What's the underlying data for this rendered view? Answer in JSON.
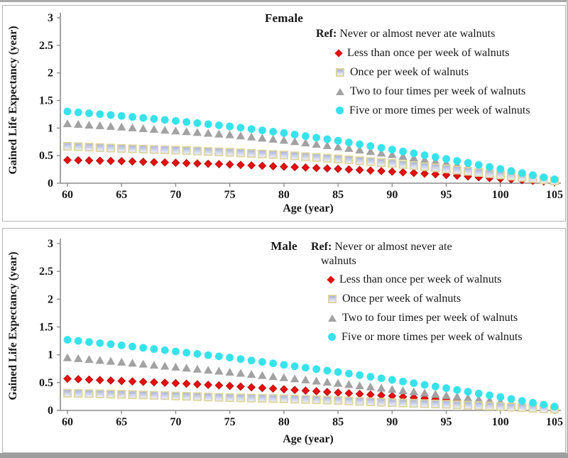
{
  "figure": {
    "background": "#ffffff",
    "panel_border_color": "#b3b3b3",
    "axis_color": "#8c8c8c",
    "text_color": "#161616"
  },
  "chart_data": [
    {
      "id": "female",
      "type": "scatter",
      "title": "Female",
      "xlabel": "Age (year)",
      "ylabel": "Gained Life Expectancy (year)",
      "xlim": [
        60,
        105
      ],
      "ylim": [
        0,
        3
      ],
      "x_ticks": [
        60,
        65,
        70,
        75,
        80,
        85,
        90,
        95,
        100,
        105
      ],
      "y_ticks": [
        0,
        0.5,
        1,
        1.5,
        2,
        2.5,
        3
      ],
      "grid": false,
      "legend_position": "top-right",
      "legend": {
        "ref_prefix": "Ref:",
        "ref_text": " Never or almost never ate walnuts"
      },
      "marker_interval_years": 1,
      "anchor_ages": [
        60,
        65,
        70,
        75,
        80,
        85,
        90,
        95,
        100,
        105
      ],
      "series": [
        {
          "name": "Less than once per week of walnuts",
          "marker": "diamond",
          "color": "#e41110",
          "edge": "#a50d0c",
          "values": [
            0.42,
            0.4,
            0.37,
            0.34,
            0.3,
            0.26,
            0.21,
            0.15,
            0.08,
            0.02
          ]
        },
        {
          "name": "Once per week of walnuts",
          "marker": "square",
          "color": "#dcd49f",
          "fill_top": "#a3aedb",
          "fill_bottom": "#f3f5fc",
          "values": [
            0.67,
            0.63,
            0.6,
            0.56,
            0.51,
            0.44,
            0.36,
            0.26,
            0.15,
            0.04
          ]
        },
        {
          "name": "Two to four times per week of walnuts",
          "marker": "triangle",
          "color": "#a2a2a2",
          "values": [
            1.08,
            1.02,
            0.95,
            0.88,
            0.78,
            0.66,
            0.52,
            0.37,
            0.21,
            0.05
          ]
        },
        {
          "name": "Five or more times per week of walnuts",
          "marker": "circle",
          "color": "#38e2eb",
          "values": [
            1.3,
            1.22,
            1.13,
            1.03,
            0.91,
            0.77,
            0.61,
            0.44,
            0.26,
            0.07
          ]
        }
      ]
    },
    {
      "id": "male",
      "type": "scatter",
      "title": "Male",
      "xlabel": "Age (year)",
      "ylabel": "Gained Life Expectancy (year)",
      "xlim": [
        60,
        105
      ],
      "ylim": [
        0,
        3
      ],
      "x_ticks": [
        60,
        65,
        70,
        75,
        80,
        85,
        90,
        95,
        100,
        105
      ],
      "y_ticks": [
        0,
        0.5,
        1,
        1.5,
        2,
        2.5,
        3
      ],
      "grid": false,
      "legend_position": "top-right",
      "legend": {
        "ref_prefix": "Ref:",
        "ref_text": " Never or almost never ate walnuts"
      },
      "marker_interval_years": 1,
      "anchor_ages": [
        60,
        65,
        70,
        75,
        80,
        85,
        90,
        95,
        100,
        105
      ],
      "series": [
        {
          "name": "Less than once per week of walnuts",
          "marker": "diamond",
          "color": "#e41110",
          "edge": "#a50d0c",
          "values": [
            0.57,
            0.53,
            0.49,
            0.44,
            0.38,
            0.32,
            0.26,
            0.19,
            0.11,
            0.03
          ]
        },
        {
          "name": "Once per week of walnuts",
          "marker": "square",
          "color": "#dcd49f",
          "fill_top": "#a3aedb",
          "fill_bottom": "#f3f5fc",
          "values": [
            0.31,
            0.29,
            0.26,
            0.23,
            0.21,
            0.18,
            0.14,
            0.11,
            0.07,
            0.02
          ]
        },
        {
          "name": "Two to four times per week of walnuts",
          "marker": "triangle",
          "color": "#a2a2a2",
          "values": [
            0.95,
            0.87,
            0.78,
            0.69,
            0.59,
            0.49,
            0.38,
            0.27,
            0.16,
            0.04
          ]
        },
        {
          "name": "Five or more times per week of walnuts",
          "marker": "circle",
          "color": "#38e2eb",
          "values": [
            1.27,
            1.17,
            1.06,
            0.95,
            0.82,
            0.69,
            0.55,
            0.4,
            0.24,
            0.07
          ]
        }
      ]
    }
  ]
}
